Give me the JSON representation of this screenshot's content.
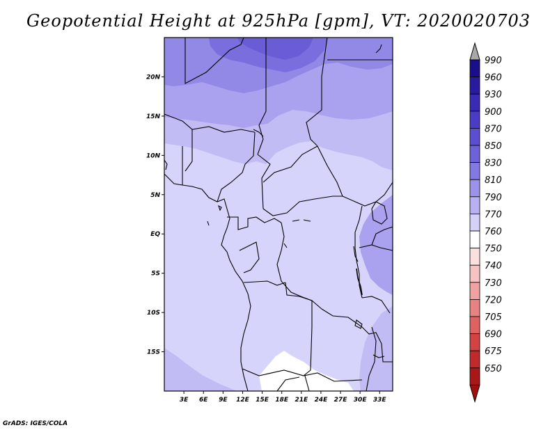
{
  "title": "Geopotential Height at 925hPa [gpm], VT: 2020020703",
  "credit": "GrADS: IGES/COLA",
  "map": {
    "lon_range": [
      0,
      35
    ],
    "lat_range": [
      -20,
      25
    ],
    "lat_ticks": [
      {
        "value": 20,
        "label": "20N"
      },
      {
        "value": 15,
        "label": "15N"
      },
      {
        "value": 10,
        "label": "10N"
      },
      {
        "value": 5,
        "label": "5N"
      },
      {
        "value": 0,
        "label": "EQ"
      },
      {
        "value": -5,
        "label": "5S"
      },
      {
        "value": -10,
        "label": "10S"
      },
      {
        "value": -15,
        "label": "15S"
      }
    ],
    "lon_ticks": [
      {
        "value": 3,
        "label": "3E"
      },
      {
        "value": 6,
        "label": "6E"
      },
      {
        "value": 9,
        "label": "9E"
      },
      {
        "value": 12,
        "label": "12E"
      },
      {
        "value": 15,
        "label": "15E"
      },
      {
        "value": 18,
        "label": "18E"
      },
      {
        "value": 21,
        "label": "21E"
      },
      {
        "value": 24,
        "label": "24E"
      },
      {
        "value": 27,
        "label": "27E"
      },
      {
        "value": 30,
        "label": "30E"
      },
      {
        "value": 33,
        "label": "33E"
      }
    ]
  },
  "colorbar": {
    "labels": [
      "990",
      "960",
      "930",
      "900",
      "870",
      "850",
      "830",
      "810",
      "790",
      "770",
      "760",
      "750",
      "740",
      "730",
      "720",
      "705",
      "690",
      "675",
      "650"
    ],
    "colors": [
      "#1a0e8a",
      "#2a1aa0",
      "#3a2ab4",
      "#4a3cc4",
      "#5c4ed0",
      "#6e62da",
      "#8478e2",
      "#9c92ea",
      "#b8b0f2",
      "#d4d0f8",
      "#ffffff",
      "#fbe0e0",
      "#f6c2c2",
      "#f0a2a2",
      "#e88282",
      "#de6262",
      "#d24444",
      "#c02a2a",
      "#a81818"
    ],
    "top_color": "#a8a8a8",
    "bottom_color": "#a01010"
  }
}
